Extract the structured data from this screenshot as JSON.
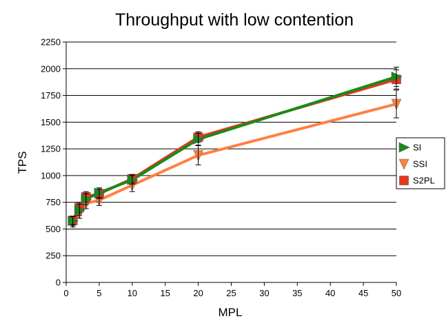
{
  "chart_data": {
    "type": "line",
    "title": "Throughput with low contention",
    "xlabel": "MPL",
    "ylabel": "TPS",
    "xlim": [
      0,
      50
    ],
    "ylim": [
      0,
      2250
    ],
    "xticks": [
      0,
      5,
      10,
      15,
      20,
      25,
      30,
      35,
      40,
      45,
      50
    ],
    "yticks": [
      0,
      250,
      500,
      750,
      1000,
      1250,
      1500,
      1750,
      2000,
      2250
    ],
    "grid": "horizontal",
    "legend_position": "right",
    "series": [
      {
        "name": "SI",
        "color": "#1a8a1a",
        "marker": "triangle-right",
        "x": [
          1,
          2,
          3,
          5,
          10,
          20,
          50
        ],
        "y": [
          575,
          680,
          780,
          840,
          960,
          1340,
          1925
        ],
        "err": [
          40,
          50,
          50,
          45,
          40,
          55,
          90
        ]
      },
      {
        "name": "SSI",
        "color": "#ff8040",
        "marker": "triangle-down",
        "x": [
          1,
          2,
          3,
          5,
          10,
          20,
          50
        ],
        "y": [
          560,
          650,
          740,
          770,
          910,
          1190,
          1670
        ],
        "err": [
          40,
          50,
          50,
          50,
          60,
          90,
          130
        ]
      },
      {
        "name": "S2PL",
        "color": "#e8361c",
        "marker": "square",
        "x": [
          1,
          2,
          3,
          5,
          10,
          20,
          50
        ],
        "y": [
          580,
          700,
          800,
          830,
          970,
          1360,
          1900
        ],
        "err": [
          40,
          50,
          50,
          45,
          40,
          50,
          90
        ]
      }
    ]
  }
}
